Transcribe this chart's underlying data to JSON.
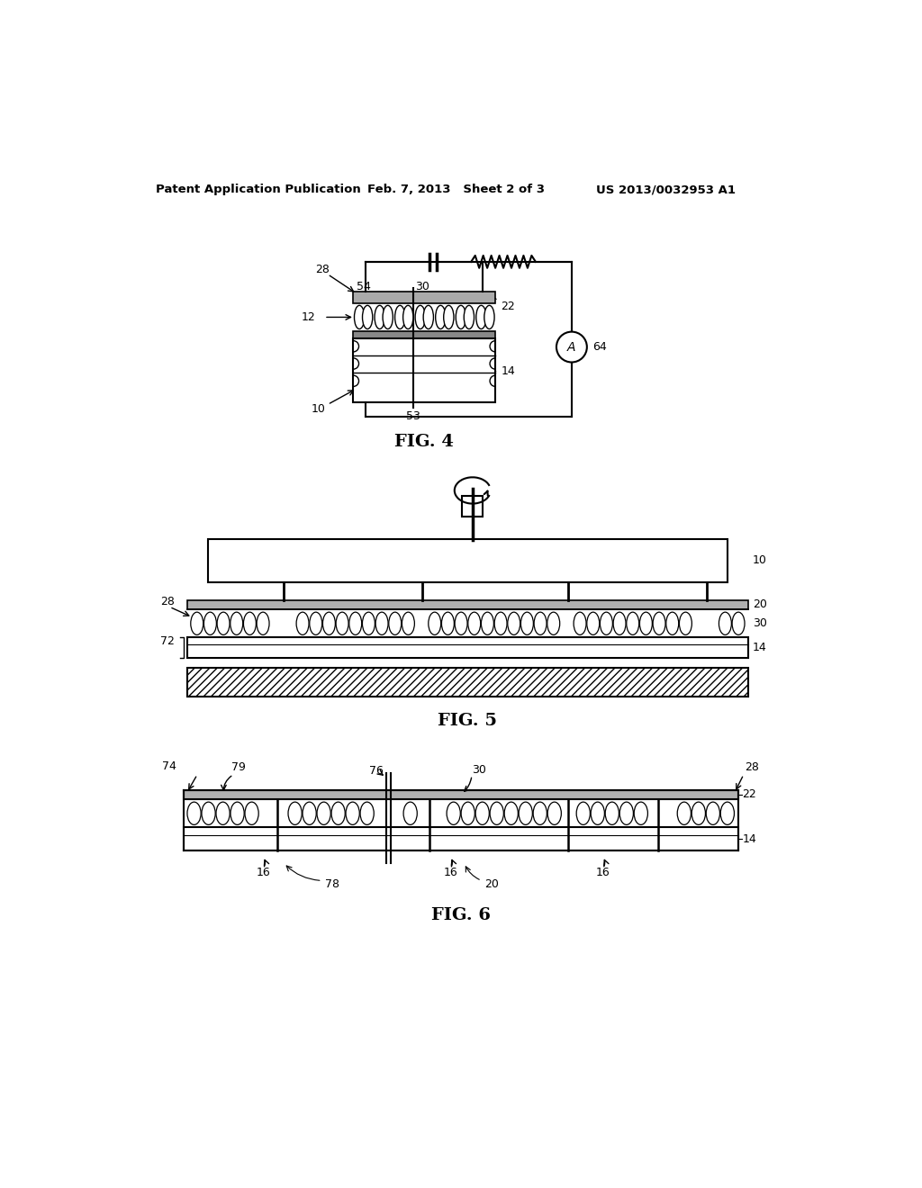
{
  "bg_color": "#ffffff",
  "header_left": "Patent Application Publication",
  "header_mid": "Feb. 7, 2013   Sheet 2 of 3",
  "header_right": "US 2013/0032953 A1",
  "fig4_label": "FIG. 4",
  "fig5_label": "FIG. 5",
  "fig6_label": "FIG. 6",
  "black": "#000000",
  "gray_light": "#d0d0d0",
  "gray_med": "#888888",
  "gray_dark": "#555555"
}
